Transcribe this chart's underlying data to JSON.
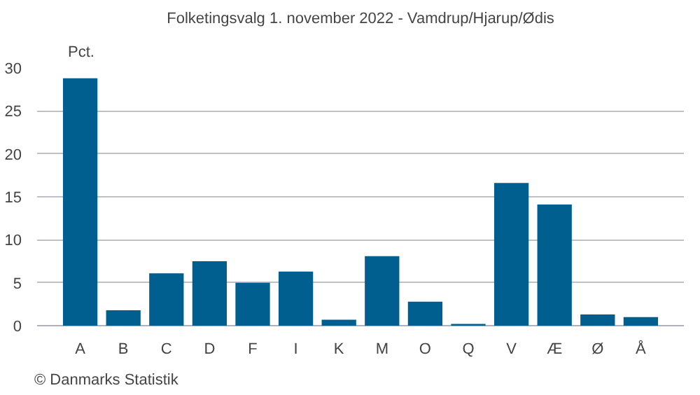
{
  "chart_data": {
    "type": "bar",
    "title": "Folketingsvalg 1. november 2022 - Vamdrup/Hjarup/Ødis",
    "ylabel": "Pct.",
    "categories": [
      "A",
      "B",
      "C",
      "D",
      "F",
      "I",
      "K",
      "M",
      "O",
      "Q",
      "V",
      "Æ",
      "Ø",
      "Å"
    ],
    "values": [
      28.8,
      1.8,
      6.1,
      7.5,
      5.0,
      6.3,
      0.7,
      8.1,
      2.8,
      0.2,
      16.6,
      14.1,
      1.3,
      1.0
    ],
    "color": "#005f8f",
    "ylim": [
      0,
      30
    ],
    "yticks": [
      0,
      5,
      10,
      15,
      20,
      25,
      30
    ],
    "grid": "y",
    "annotations": [
      "© Danmarks Statistik"
    ]
  }
}
